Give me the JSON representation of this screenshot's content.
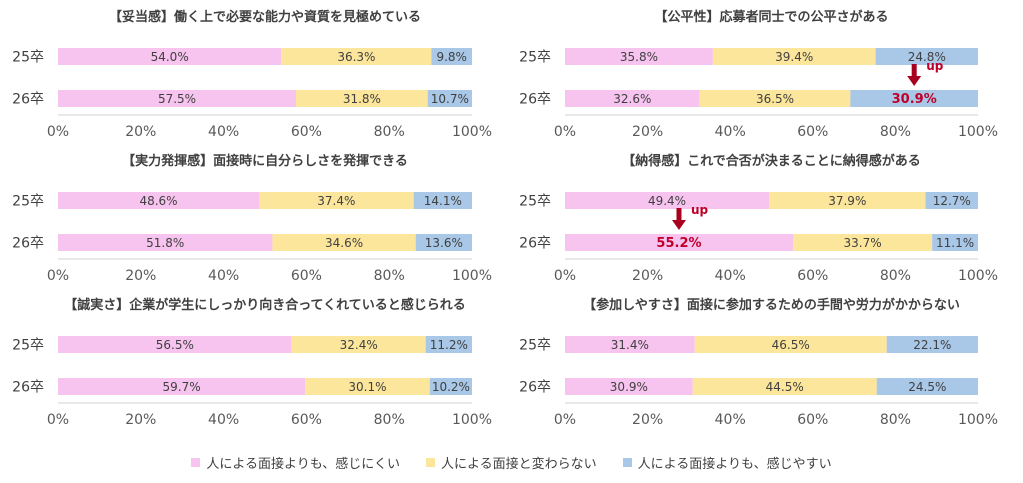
{
  "chart_data": [
    {
      "type": "bar",
      "title": "【妥当感】働く上で必要な能力や資質を見極めている",
      "categories": [
        "25卒",
        "26卒"
      ],
      "series": [
        {
          "name": "人による面接よりも、感じにくい",
          "values": [
            54.0,
            57.5
          ]
        },
        {
          "name": "人による面接と変わらない",
          "values": [
            36.3,
            31.8
          ]
        },
        {
          "name": "人による面接よりも、感じやすい",
          "values": [
            9.8,
            10.7
          ]
        }
      ],
      "highlight": null,
      "ticks": [
        "0%",
        "20%",
        "40%",
        "60%",
        "80%",
        "100%"
      ]
    },
    {
      "type": "bar",
      "title": "【公平性】応募者同士での公平さがある",
      "categories": [
        "25卒",
        "26卒"
      ],
      "series": [
        {
          "name": "人による面接よりも、感じにくい",
          "values": [
            35.8,
            32.6
          ]
        },
        {
          "name": "人による面接と変わらない",
          "values": [
            39.4,
            36.5
          ]
        },
        {
          "name": "人による面接よりも、感じやすい",
          "values": [
            24.8,
            30.9
          ]
        }
      ],
      "highlight": {
        "category": 1,
        "series": 2,
        "annotation": "up"
      },
      "ticks": [
        "0%",
        "20%",
        "40%",
        "60%",
        "80%",
        "100%"
      ]
    },
    {
      "type": "bar",
      "title": "【実力発揮感】面接時に自分らしさを発揮できる",
      "categories": [
        "25卒",
        "26卒"
      ],
      "series": [
        {
          "name": "人による面接よりも、感じにくい",
          "values": [
            48.6,
            51.8
          ]
        },
        {
          "name": "人による面接と変わらない",
          "values": [
            37.4,
            34.6
          ]
        },
        {
          "name": "人による面接よりも、感じやすい",
          "values": [
            14.1,
            13.6
          ]
        }
      ],
      "highlight": null,
      "ticks": [
        "0%",
        "20%",
        "40%",
        "60%",
        "80%",
        "100%"
      ]
    },
    {
      "type": "bar",
      "title": "【納得感】これで合否が決まることに納得感がある",
      "categories": [
        "25卒",
        "26卒"
      ],
      "series": [
        {
          "name": "人による面接よりも、感じにくい",
          "values": [
            49.4,
            55.2
          ]
        },
        {
          "name": "人による面接と変わらない",
          "values": [
            37.9,
            33.7
          ]
        },
        {
          "name": "人による面接よりも、感じやすい",
          "values": [
            12.7,
            11.1
          ]
        }
      ],
      "highlight": {
        "category": 1,
        "series": 0,
        "annotation": "up"
      },
      "ticks": [
        "0%",
        "20%",
        "40%",
        "60%",
        "80%",
        "100%"
      ]
    },
    {
      "type": "bar",
      "title": "【誠実さ】企業が学生にしっかり向き合ってくれていると感じられる",
      "categories": [
        "25卒",
        "26卒"
      ],
      "series": [
        {
          "name": "人による面接よりも、感じにくい",
          "values": [
            56.5,
            59.7
          ]
        },
        {
          "name": "人による面接と変わらない",
          "values": [
            32.4,
            30.1
          ]
        },
        {
          "name": "人による面接よりも、感じやすい",
          "values": [
            11.2,
            10.2
          ]
        }
      ],
      "highlight": null,
      "ticks": [
        "0%",
        "20%",
        "40%",
        "60%",
        "80%",
        "100%"
      ]
    },
    {
      "type": "bar",
      "title": "【参加しやすさ】面接に参加するための手間や労力がかからない",
      "categories": [
        "25卒",
        "26卒"
      ],
      "series": [
        {
          "name": "人による面接よりも、感じにくい",
          "values": [
            31.4,
            30.9
          ]
        },
        {
          "name": "人による面接と変わらない",
          "values": [
            46.5,
            44.5
          ]
        },
        {
          "name": "人による面接よりも、感じやすい",
          "values": [
            22.1,
            24.5
          ]
        }
      ],
      "highlight": null,
      "ticks": [
        "0%",
        "20%",
        "40%",
        "60%",
        "80%",
        "100%"
      ]
    }
  ],
  "legend": [
    {
      "label": "人による面接よりも、感じにくい",
      "color": "#f7c3ef"
    },
    {
      "label": "人による面接と変わらない",
      "color": "#fce69b"
    },
    {
      "label": "人による面接よりも、感じやすい",
      "color": "#a9c7e6"
    }
  ],
  "colors": {
    "series": [
      "#f7c3ef",
      "#fce69b",
      "#a9c7e6"
    ],
    "highlight_text": "#c0002a",
    "arrow": "#a8001f",
    "label": "#404040"
  }
}
